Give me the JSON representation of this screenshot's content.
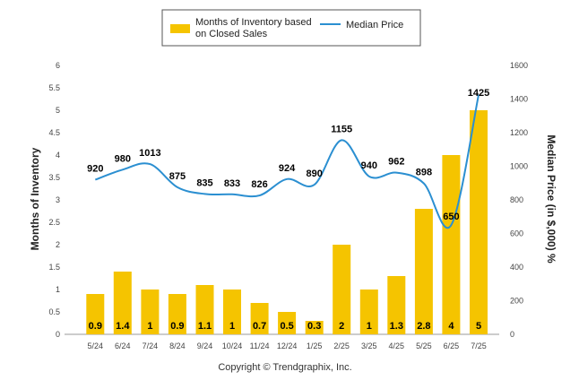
{
  "chart_data": {
    "type": "bar",
    "categories": [
      "5/24",
      "6/24",
      "7/24",
      "8/24",
      "9/24",
      "10/24",
      "11/24",
      "12/24",
      "1/25",
      "2/25",
      "3/25",
      "4/25",
      "5/25",
      "6/25",
      "7/25"
    ],
    "series": [
      {
        "name": "Months of Inventory based on Closed Sales",
        "legend_lines": [
          "Months of Inventory based",
          "on Closed Sales"
        ],
        "type": "bar",
        "axis": "left",
        "color": "#F5C400",
        "values": [
          0.9,
          1.4,
          1,
          0.9,
          1.1,
          1,
          0.7,
          0.5,
          0.3,
          2,
          1,
          1.3,
          2.8,
          4,
          5
        ],
        "labels": [
          "0.9",
          "1.4",
          "1",
          "0.9",
          "1.1",
          "1",
          "0.7",
          "0.5",
          "0.3",
          "2",
          "1",
          "1.3",
          "2.8",
          "4",
          "5"
        ]
      },
      {
        "name": "Median Price",
        "type": "line",
        "axis": "right",
        "color": "#2B8FD1",
        "values": [
          920,
          980,
          1013,
          875,
          835,
          833,
          826,
          924,
          890,
          1155,
          940,
          962,
          898,
          650,
          1425
        ],
        "labels": [
          "920",
          "980",
          "1013",
          "875",
          "835",
          "833",
          "826",
          "924",
          "890",
          "1155",
          "940",
          "962",
          "898",
          "650",
          "1425"
        ]
      }
    ],
    "y_left": {
      "label": "Months of Inventory",
      "range": [
        0,
        6
      ],
      "ticks": [
        "0",
        "0.5",
        "1",
        "1.5",
        "2",
        "2.5",
        "3",
        "3.5",
        "4",
        "4.5",
        "5",
        "5.5",
        "6"
      ]
    },
    "y_right": {
      "label": "Median Price (in $,000) %",
      "range": [
        0,
        1600
      ],
      "ticks": [
        "0",
        "200",
        "400",
        "600",
        "800",
        "1000",
        "1200",
        "1400",
        "1600"
      ]
    },
    "grid": false,
    "legend_position": "top-center",
    "footer": "Copyright © Trendgraphix, Inc."
  }
}
